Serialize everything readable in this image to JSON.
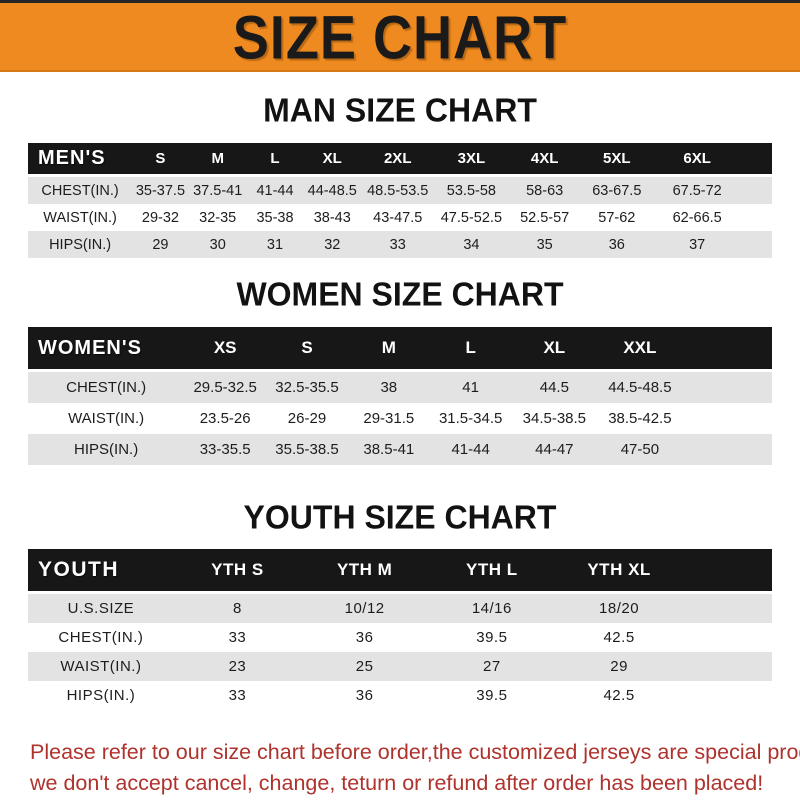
{
  "banner": {
    "title": "SIZE CHART"
  },
  "colors": {
    "banner_orange": "#EE8A1F",
    "table_header_black": "#171717",
    "row_gray": "#E3E3E3",
    "note_red": "#AF322C"
  },
  "sections": [
    {
      "id": "men",
      "heading": "MAN SIZE CHART",
      "header_label": "MEN'S",
      "columns": [
        "S",
        "M",
        "L",
        "XL",
        "2XL",
        "3XL",
        "4XL",
        "5XL",
        "6XL"
      ],
      "rows": [
        {
          "label": "CHEST(IN.)",
          "values": [
            "35-37.5",
            "37.5-41",
            "41-44",
            "44-48.5",
            "48.5-53.5",
            "53.5-58",
            "58-63",
            "63-67.5",
            "67.5-72"
          ]
        },
        {
          "label": "WAIST(IN.)",
          "values": [
            "29-32",
            "32-35",
            "35-38",
            "38-43",
            "43-47.5",
            "47.5-52.5",
            "52.5-57",
            "57-62",
            "62-66.5"
          ]
        },
        {
          "label": "HIPS(IN.)",
          "values": [
            "29",
            "30",
            "31",
            "32",
            "33",
            "34",
            "35",
            "36",
            "37"
          ]
        }
      ]
    },
    {
      "id": "women",
      "heading": "WOMEN SIZE CHART",
      "header_label": "WOMEN'S",
      "columns": [
        "XS",
        "S",
        "M",
        "L",
        "XL",
        "XXL"
      ],
      "rows": [
        {
          "label": "CHEST(IN.)",
          "values": [
            "29.5-32.5",
            "32.5-35.5",
            "38",
            "41",
            "44.5",
            "44.5-48.5"
          ]
        },
        {
          "label": "WAIST(IN.)",
          "values": [
            "23.5-26",
            "26-29",
            "29-31.5",
            "31.5-34.5",
            "34.5-38.5",
            "38.5-42.5"
          ]
        },
        {
          "label": "HIPS(IN.)",
          "values": [
            "33-35.5",
            "35.5-38.5",
            "38.5-41",
            "41-44",
            "44-47",
            "47-50"
          ]
        }
      ]
    },
    {
      "id": "youth",
      "heading": "YOUTH SIZE CHART",
      "header_label": "YOUTH",
      "columns": [
        "YTH S",
        "YTH M",
        "YTH L",
        "YTH XL"
      ],
      "rows": [
        {
          "label": "U.S.SIZE",
          "values": [
            "8",
            "10/12",
            "14/16",
            "18/20"
          ]
        },
        {
          "label": "CHEST(IN.)",
          "values": [
            "33",
            "36",
            "39.5",
            "42.5"
          ]
        },
        {
          "label": "WAIST(IN.)",
          "values": [
            "23",
            "25",
            "27",
            "29"
          ]
        },
        {
          "label": "HIPS(IN.)",
          "values": [
            "33",
            "36",
            "39.5",
            "42.5"
          ]
        }
      ]
    }
  ],
  "note": {
    "lines": [
      "Please refer to our size chart before order,the customized jerseys are special products,",
      "we don't accept cancel, change, teturn or refund after order has been placed!"
    ]
  }
}
